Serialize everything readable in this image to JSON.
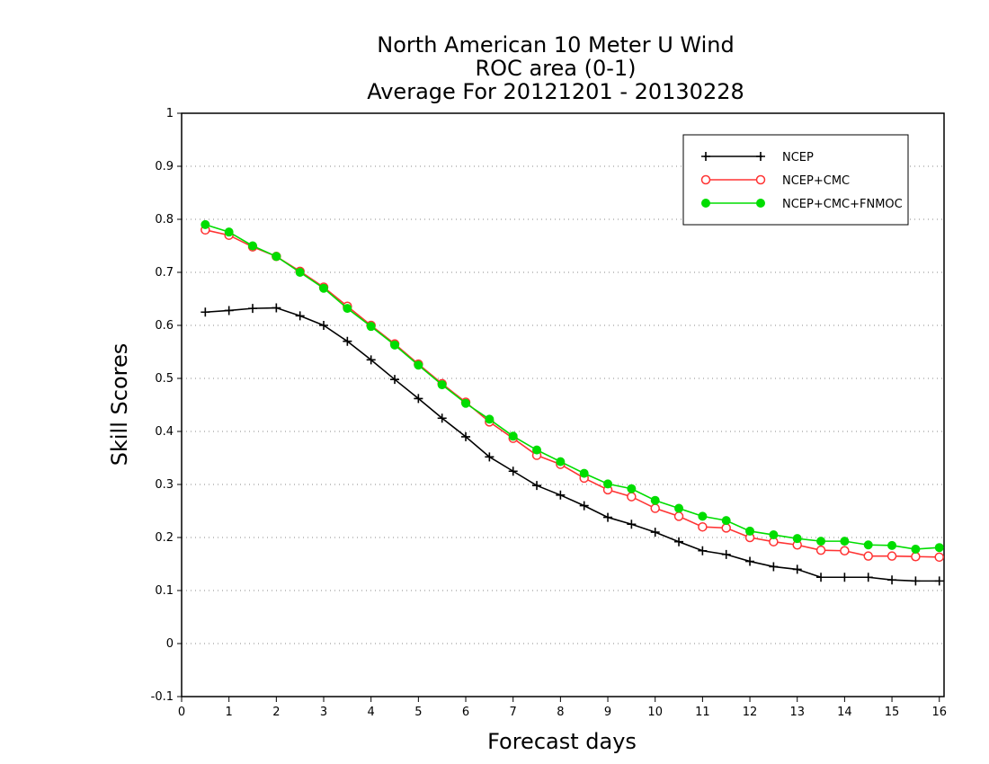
{
  "chart_data": {
    "type": "line",
    "title": [
      "North American 10 Meter U Wind",
      "ROC area (0-1)",
      "Average For 20121201 - 20130228"
    ],
    "xlabel": "Forecast days",
    "ylabel": "Skill Scores",
    "xlim": [
      0,
      16.1
    ],
    "ylim": [
      -0.1,
      1.0
    ],
    "xticks": [
      0,
      1,
      2,
      3,
      4,
      5,
      6,
      7,
      8,
      9,
      10,
      11,
      12,
      13,
      14,
      15,
      16
    ],
    "yticks": [
      -0.1,
      0,
      0.1,
      0.2,
      0.3,
      0.4,
      0.5,
      0.6,
      0.7,
      0.8,
      0.9,
      1
    ],
    "ytick_labels": [
      "-0.1",
      "0",
      "0.1",
      "0.2",
      "0.3",
      "0.4",
      "0.5",
      "0.6",
      "0.7",
      "0.8",
      "0.9",
      "1"
    ],
    "grid": "dotted horizontal",
    "legend_position": "top-right",
    "x": [
      0.5,
      1,
      1.5,
      2,
      2.5,
      3,
      3.5,
      4,
      4.5,
      5,
      5.5,
      6,
      6.5,
      7,
      7.5,
      8,
      8.5,
      9,
      9.5,
      10,
      10.5,
      11,
      11.5,
      12,
      12.5,
      13,
      13.5,
      14,
      14.5,
      15,
      15.5,
      16
    ],
    "series": [
      {
        "name": "NCEP",
        "color": "#000000",
        "marker": "plus",
        "values": [
          0.625,
          0.628,
          0.632,
          0.633,
          0.618,
          0.6,
          0.57,
          0.535,
          0.498,
          0.462,
          0.425,
          0.39,
          0.352,
          0.325,
          0.298,
          0.28,
          0.26,
          0.238,
          0.225,
          0.21,
          0.192,
          0.175,
          0.168,
          0.155,
          0.145,
          0.14,
          0.125,
          0.125,
          0.125,
          0.12,
          0.118,
          0.118
        ]
      },
      {
        "name": "NCEP+CMC",
        "color": "#ff3333",
        "marker": "open-circle",
        "values": [
          0.78,
          0.77,
          0.748,
          0.73,
          0.702,
          0.672,
          0.636,
          0.6,
          0.565,
          0.527,
          0.49,
          0.455,
          0.418,
          0.387,
          0.355,
          0.338,
          0.312,
          0.29,
          0.277,
          0.255,
          0.24,
          0.22,
          0.218,
          0.2,
          0.192,
          0.186,
          0.176,
          0.175,
          0.165,
          0.165,
          0.164,
          0.163
        ]
      },
      {
        "name": "NCEP+CMC+FNMOC",
        "color": "#00dd00",
        "marker": "filled-circle",
        "values": [
          0.79,
          0.776,
          0.75,
          0.73,
          0.7,
          0.67,
          0.632,
          0.598,
          0.563,
          0.525,
          0.488,
          0.453,
          0.423,
          0.391,
          0.365,
          0.343,
          0.321,
          0.301,
          0.292,
          0.27,
          0.255,
          0.24,
          0.232,
          0.212,
          0.205,
          0.198,
          0.193,
          0.193,
          0.186,
          0.185,
          0.178,
          0.181
        ]
      }
    ]
  }
}
